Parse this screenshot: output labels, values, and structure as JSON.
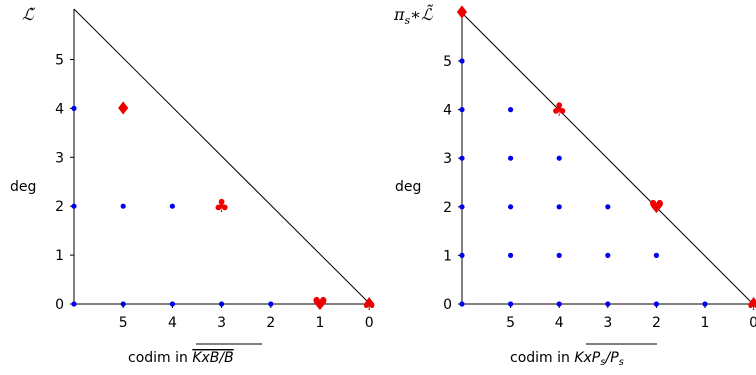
{
  "colors": {
    "dot": "#0000ee",
    "suit": "#ee0000",
    "line": "#000000"
  },
  "panels": [
    {
      "corner_label": "ℒ̃",
      "corner_label_plain": "L~",
      "ylabel": "deg",
      "xlabel_prefix": "codim in ",
      "xlabel_over": "KxB/B",
      "xticks": [
        "5",
        "4",
        "3",
        "2",
        "1",
        "0"
      ],
      "yticks": [
        "0",
        "1",
        "2",
        "3",
        "4",
        "5"
      ],
      "dots": [
        [
          6,
          0
        ],
        [
          5,
          0
        ],
        [
          4,
          0
        ],
        [
          3,
          0
        ],
        [
          2,
          0
        ],
        [
          6,
          2
        ],
        [
          5,
          2
        ],
        [
          4,
          2
        ],
        [
          6,
          4
        ]
      ],
      "suits": [
        {
          "symbol": "♦",
          "name": "diamond",
          "codim": 5,
          "deg": 4
        },
        {
          "symbol": "♣",
          "name": "club",
          "codim": 3,
          "deg": 2
        },
        {
          "symbol": "♥",
          "name": "heart",
          "codim": 1,
          "deg": 0
        },
        {
          "symbol": "♠",
          "name": "spade",
          "codim": 0,
          "deg": 0
        }
      ]
    },
    {
      "corner_label": "πs*ℒ̃",
      "ylabel": "deg",
      "xlabel_prefix": "codim in ",
      "xlabel_over": "KxPs/Ps",
      "xticks": [
        "5",
        "4",
        "3",
        "2",
        "1",
        "0"
      ],
      "yticks": [
        "0",
        "1",
        "2",
        "3",
        "4",
        "5"
      ],
      "dots": [
        [
          6,
          0
        ],
        [
          5,
          0
        ],
        [
          4,
          0
        ],
        [
          3,
          0
        ],
        [
          2,
          0
        ],
        [
          1,
          0
        ],
        [
          6,
          1
        ],
        [
          5,
          1
        ],
        [
          4,
          1
        ],
        [
          3,
          1
        ],
        [
          2,
          1
        ],
        [
          6,
          2
        ],
        [
          5,
          2
        ],
        [
          4,
          2
        ],
        [
          3,
          2
        ],
        [
          6,
          3
        ],
        [
          5,
          3
        ],
        [
          4,
          3
        ],
        [
          6,
          4
        ],
        [
          5,
          4
        ],
        [
          6,
          5
        ]
      ],
      "suits": [
        {
          "symbol": "♦",
          "name": "diamond",
          "codim": 6,
          "deg": 6
        },
        {
          "symbol": "♣",
          "name": "club",
          "codim": 4,
          "deg": 4
        },
        {
          "symbol": "♥",
          "name": "heart",
          "codim": 2,
          "deg": 2
        },
        {
          "symbol": "♠",
          "name": "spade",
          "codim": 0,
          "deg": 0
        }
      ]
    }
  ]
}
